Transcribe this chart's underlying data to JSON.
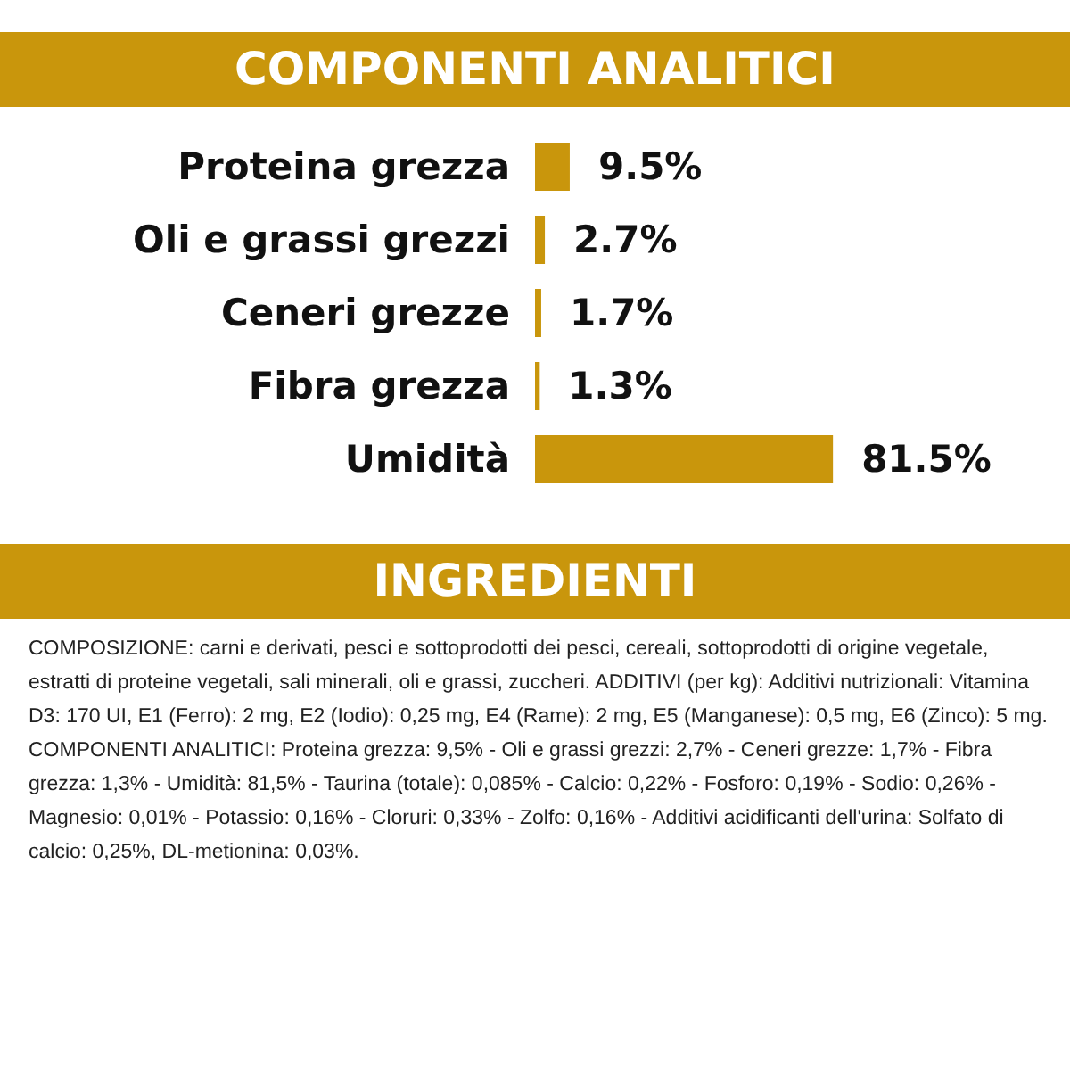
{
  "chart_data": {
    "type": "bar",
    "orientation": "horizontal",
    "title": "COMPONENTI ANALITICI",
    "categories": [
      "Proteina grezza",
      "Oli e grassi grezzi",
      "Ceneri grezze",
      "Fibra grezza",
      "Umidità"
    ],
    "values": [
      9.5,
      2.7,
      1.7,
      1.3,
      81.5
    ],
    "value_labels": [
      "9.5%",
      "2.7%",
      "1.7%",
      "1.3%",
      "81.5%"
    ],
    "color": "#c9960c",
    "annotations": [
      "INGREDIENTI",
      "COMPOSIZIONE: carni e derivati, pesci e sottoprodotti dei pesci, cereali, sottoprodotti di origine vegetale, estratti di proteine vegetali, sali minerali, oli e grassi, zuccheri. ADDITIVI (per kg): Additivi nutrizionali: Vitamina D3: 170 UI, E1 (Ferro): 2 mg, E2 (Iodio): 0,25 mg, E4 (Rame): 2 mg, E5 (Manganese): 0,5 mg, E6 (Zinco): 5 mg. COMPONENTI ANALITICI: Proteina grezza: 9,5% - Oli e grassi grezzi: 2,7% - Ceneri grezze: 1,7% - Fibra grezza: 1,3% - Umidità: 81,5% - Taurina (totale): 0,085% - Calcio: 0,22% - Fosforo: 0,19% - Sodio: 0,26% - Magnesio: 0,01% - Potassio: 0,16% - Cloruri: 0,33% - Zolfo: 0,16% - Additivi acidificanti dell'urina: Solfato di calcio: 0,25%, DL-metionina: 0,03%."
    ]
  }
}
